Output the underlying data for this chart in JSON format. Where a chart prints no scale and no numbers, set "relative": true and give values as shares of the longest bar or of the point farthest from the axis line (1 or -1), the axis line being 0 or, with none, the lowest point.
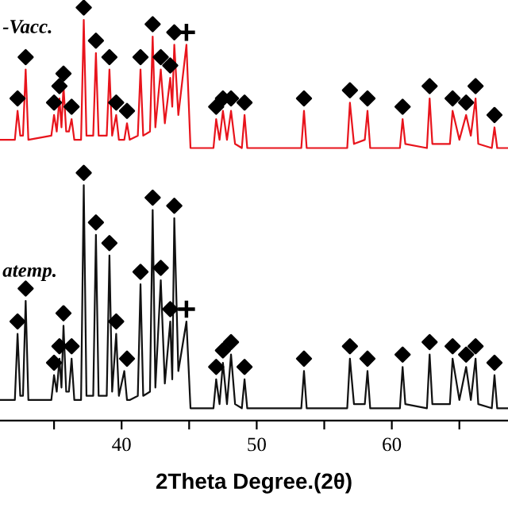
{
  "chart_data": {
    "type": "line",
    "relative": true,
    "xlabel": "2Theta Degree.(2θ)",
    "xlim": [
      31,
      68.6
    ],
    "xticks": [
      {
        "value": 35,
        "label": null
      },
      40,
      {
        "value": 45,
        "label": null
      },
      50,
      {
        "value": 55,
        "label": null
      },
      60,
      {
        "value": 65,
        "label": null
      }
    ],
    "grid": false,
    "legend": false,
    "line_style": "solid",
    "x": [
      31.0,
      32.1,
      32.3,
      32.5,
      32.7,
      32.9,
      33.1,
      34.8,
      35.0,
      35.2,
      35.4,
      35.55,
      35.7,
      35.9,
      36.1,
      36.3,
      36.5,
      37.0,
      37.2,
      37.4,
      37.9,
      38.1,
      38.3,
      38.9,
      39.1,
      39.3,
      39.6,
      39.8,
      40.2,
      40.4,
      40.6,
      41.2,
      41.4,
      41.6,
      42.1,
      42.3,
      42.5,
      42.9,
      43.2,
      43.6,
      43.75,
      43.9,
      44.2,
      44.8,
      45.1,
      46.8,
      47.0,
      47.25,
      47.5,
      47.8,
      48.1,
      48.4,
      48.9,
      49.1,
      49.3,
      53.3,
      53.5,
      53.7,
      56.7,
      56.9,
      57.2,
      58.0,
      58.2,
      58.4,
      60.6,
      60.8,
      61.0,
      62.6,
      62.8,
      63.0,
      64.3,
      64.5,
      65.0,
      65.5,
      65.85,
      66.2,
      66.4,
      67.4,
      67.6,
      67.8,
      68.6
    ],
    "series": [
      {
        "name": "-Vacc.",
        "color": "#e8141c",
        "values": [
          0.68,
          0.68,
          0.75,
          0.69,
          0.69,
          0.85,
          0.68,
          0.69,
          0.74,
          0.7,
          0.78,
          0.71,
          0.81,
          0.7,
          0.7,
          0.73,
          0.68,
          0.68,
          0.97,
          0.69,
          0.69,
          0.89,
          0.69,
          0.69,
          0.85,
          0.69,
          0.74,
          0.68,
          0.68,
          0.72,
          0.68,
          0.69,
          0.85,
          0.69,
          0.7,
          0.93,
          0.71,
          0.85,
          0.72,
          0.83,
          0.76,
          0.91,
          0.74,
          0.91,
          0.66,
          0.66,
          0.73,
          0.68,
          0.75,
          0.68,
          0.75,
          0.67,
          0.66,
          0.74,
          0.66,
          0.66,
          0.75,
          0.66,
          0.66,
          0.77,
          0.67,
          0.68,
          0.75,
          0.66,
          0.66,
          0.73,
          0.67,
          0.66,
          0.78,
          0.67,
          0.67,
          0.75,
          0.68,
          0.74,
          0.69,
          0.78,
          0.67,
          0.66,
          0.71,
          0.66,
          0.66
        ]
      },
      {
        "name": "atemp.",
        "color": "#111111",
        "values": [
          0.05,
          0.05,
          0.21,
          0.06,
          0.06,
          0.29,
          0.05,
          0.05,
          0.11,
          0.07,
          0.15,
          0.08,
          0.23,
          0.07,
          0.07,
          0.15,
          0.05,
          0.05,
          0.57,
          0.06,
          0.06,
          0.45,
          0.06,
          0.06,
          0.4,
          0.07,
          0.21,
          0.06,
          0.12,
          0.05,
          0.05,
          0.06,
          0.33,
          0.06,
          0.07,
          0.51,
          0.08,
          0.34,
          0.09,
          0.24,
          0.1,
          0.49,
          0.12,
          0.24,
          0.03,
          0.03,
          0.1,
          0.04,
          0.14,
          0.04,
          0.16,
          0.04,
          0.03,
          0.1,
          0.03,
          0.03,
          0.12,
          0.03,
          0.03,
          0.15,
          0.04,
          0.04,
          0.12,
          0.03,
          0.03,
          0.13,
          0.04,
          0.03,
          0.16,
          0.04,
          0.04,
          0.15,
          0.05,
          0.13,
          0.05,
          0.15,
          0.04,
          0.03,
          0.11,
          0.03,
          0.03
        ]
      },
      {
        "type": "scatter",
        "marker": "diamond",
        "color": "#000000",
        "x": [
          32.3,
          32.9,
          35.0,
          35.4,
          35.7,
          36.3,
          37.2,
          38.1,
          39.1,
          39.6,
          40.4,
          41.4,
          42.3,
          42.9,
          43.6,
          43.9,
          47.0,
          47.5,
          48.1,
          49.1,
          53.5,
          56.9,
          58.2,
          60.8,
          62.8,
          64.5,
          65.5,
          66.2,
          67.6
        ],
        "values": [
          0.78,
          0.88,
          0.77,
          0.81,
          0.84,
          0.76,
          1.0,
          0.92,
          0.88,
          0.77,
          0.75,
          0.88,
          0.96,
          0.88,
          0.86,
          0.94,
          0.76,
          0.78,
          0.78,
          0.77,
          0.78,
          0.8,
          0.78,
          0.76,
          0.81,
          0.78,
          0.77,
          0.81,
          0.74
        ]
      },
      {
        "type": "scatter",
        "marker": "diamond",
        "color": "#000000",
        "x": [
          32.3,
          32.9,
          35.0,
          35.4,
          35.7,
          36.3,
          37.2,
          38.1,
          39.1,
          39.6,
          40.4,
          41.4,
          42.3,
          42.9,
          43.6,
          43.9,
          47.0,
          47.5,
          48.1,
          49.1,
          53.5,
          56.9,
          58.2,
          60.8,
          62.8,
          64.5,
          65.5,
          66.2,
          67.6
        ],
        "values": [
          0.24,
          0.32,
          0.14,
          0.18,
          0.26,
          0.18,
          0.6,
          0.48,
          0.43,
          0.24,
          0.15,
          0.36,
          0.54,
          0.37,
          0.27,
          0.52,
          0.13,
          0.17,
          0.19,
          0.13,
          0.15,
          0.18,
          0.15,
          0.16,
          0.19,
          0.18,
          0.16,
          0.18,
          0.14
        ]
      },
      {
        "type": "scatter",
        "marker": "cross",
        "color": "#000000",
        "x": [
          44.8,
          44.8
        ],
        "values": [
          0.94,
          0.27
        ]
      }
    ]
  }
}
